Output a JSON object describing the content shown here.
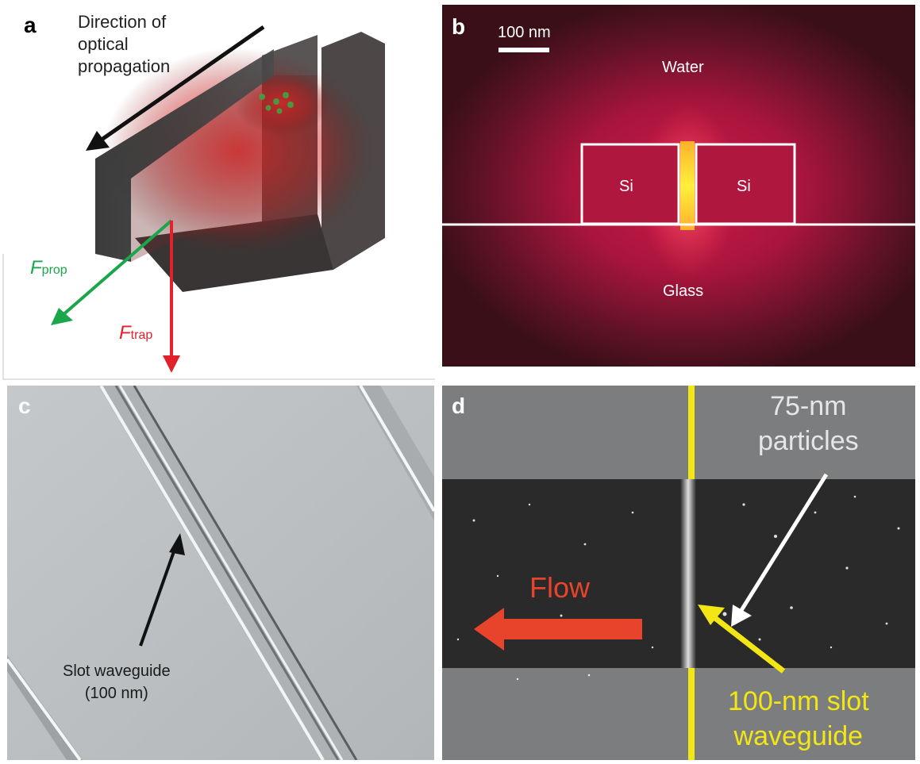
{
  "panel_a": {
    "label": "a",
    "direction_text": [
      "Direction of",
      "optical",
      "propagation"
    ],
    "f_prop": {
      "main": "F",
      "sub": "prop",
      "color": "#1aa64a"
    },
    "f_trap": {
      "main": "F",
      "sub": "trap",
      "color": "#e0222a"
    }
  },
  "panel_b": {
    "label": "b",
    "scale_bar": "100 nm",
    "water": "Water",
    "glass": "Glass",
    "si_left": "Si",
    "si_right": "Si"
  },
  "panel_c": {
    "label": "c",
    "annotation": [
      "Slot waveguide",
      "(100 nm)"
    ]
  },
  "panel_d": {
    "label": "d",
    "particles": [
      "75-nm",
      "particles"
    ],
    "flow": "Flow",
    "slot": [
      "100-nm slot",
      "waveguide"
    ],
    "colors": {
      "flow": "#e8432b",
      "slot": "#f2e614"
    }
  }
}
